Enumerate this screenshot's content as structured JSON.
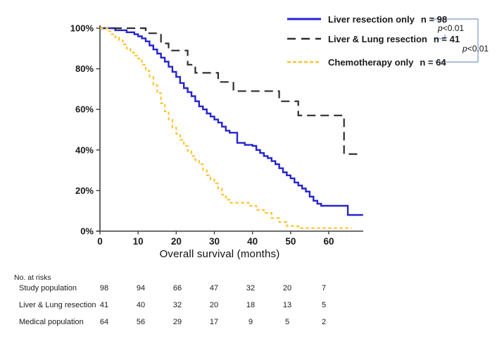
{
  "chart_data": {
    "type": "line",
    "variant": "kaplan_meier_step",
    "title": "",
    "xlabel": "Overall survival (months)",
    "ylabel": "",
    "x_range": [
      0,
      69
    ],
    "y_range": [
      0,
      100
    ],
    "x_tick_values": [
      0,
      10,
      20,
      30,
      40,
      50,
      60
    ],
    "x_tick_labels": [
      "0",
      "10",
      "20",
      "30",
      "40",
      "50",
      "60"
    ],
    "y_tick_values": [
      100,
      80,
      60,
      40,
      20,
      0
    ],
    "y_tick_labels": [
      "100%",
      "80%",
      "60%",
      "40%",
      "20%",
      "0%"
    ],
    "grid": false,
    "legend_position": "top-right",
    "axis_color": "#3f3f3f",
    "series": [
      {
        "name": "Liver resection only",
        "n": 98,
        "color": "#2424cf",
        "line_style": "solid",
        "points": [
          [
            0,
            100
          ],
          [
            4,
            99
          ],
          [
            7,
            98
          ],
          [
            9,
            97
          ],
          [
            10,
            96
          ],
          [
            11,
            95
          ],
          [
            12,
            93.5
          ],
          [
            13,
            91.5
          ],
          [
            14,
            89.5
          ],
          [
            15,
            87.5
          ],
          [
            16,
            85.5
          ],
          [
            17,
            83.5
          ],
          [
            18,
            81
          ],
          [
            19,
            78.5
          ],
          [
            20,
            76
          ],
          [
            21,
            73
          ],
          [
            22,
            70.5
          ],
          [
            23,
            68.5
          ],
          [
            24,
            66.5
          ],
          [
            25,
            64
          ],
          [
            26,
            61.5
          ],
          [
            27,
            60
          ],
          [
            28,
            58
          ],
          [
            29,
            56.5
          ],
          [
            30,
            55
          ],
          [
            31,
            53.5
          ],
          [
            32,
            51.5
          ],
          [
            33,
            49.5
          ],
          [
            34,
            48.5
          ],
          [
            36,
            43.5
          ],
          [
            38,
            42.5
          ],
          [
            40,
            42
          ],
          [
            41,
            40
          ],
          [
            42,
            38.5
          ],
          [
            43,
            37
          ],
          [
            44,
            36
          ],
          [
            45,
            34.5
          ],
          [
            46,
            33
          ],
          [
            47,
            31
          ],
          [
            48,
            29
          ],
          [
            49,
            27.5
          ],
          [
            50,
            26
          ],
          [
            51,
            24
          ],
          [
            52,
            22.5
          ],
          [
            53,
            21
          ],
          [
            54,
            19.5
          ],
          [
            55,
            17
          ],
          [
            56,
            15
          ],
          [
            57,
            13.5
          ],
          [
            58,
            12.5
          ],
          [
            65,
            8
          ],
          [
            69,
            8
          ]
        ]
      },
      {
        "name": "Liver & Lung resection",
        "n": 41,
        "color": "#2d2d2d",
        "line_style": "long-dash",
        "points": [
          [
            0,
            100
          ],
          [
            12,
            97.5
          ],
          [
            16,
            92.5
          ],
          [
            18,
            89
          ],
          [
            23,
            82
          ],
          [
            25,
            78
          ],
          [
            31,
            73.5
          ],
          [
            35,
            69
          ],
          [
            47,
            64
          ],
          [
            52,
            57
          ],
          [
            64,
            38
          ],
          [
            68,
            38
          ]
        ]
      },
      {
        "name": "Chemotherapy only",
        "n": 64,
        "color": "#fcc428",
        "line_style": "short-dash",
        "points": [
          [
            0,
            100
          ],
          [
            2,
            98.5
          ],
          [
            3,
            97
          ],
          [
            4,
            95.5
          ],
          [
            5,
            94
          ],
          [
            6,
            92
          ],
          [
            7,
            90
          ],
          [
            8,
            88
          ],
          [
            9,
            86.5
          ],
          [
            10,
            85
          ],
          [
            11,
            82
          ],
          [
            12,
            79
          ],
          [
            13,
            76
          ],
          [
            14,
            72
          ],
          [
            15,
            68
          ],
          [
            16,
            63
          ],
          [
            17,
            59
          ],
          [
            18,
            55
          ],
          [
            19,
            51
          ],
          [
            20,
            48
          ],
          [
            21,
            45
          ],
          [
            22,
            42
          ],
          [
            23,
            39.5
          ],
          [
            24,
            37
          ],
          [
            25,
            35
          ],
          [
            26,
            33
          ],
          [
            27,
            30
          ],
          [
            28,
            27.5
          ],
          [
            29,
            25.5
          ],
          [
            30,
            23.5
          ],
          [
            31,
            21
          ],
          [
            32,
            18
          ],
          [
            33,
            15.5
          ],
          [
            34,
            14
          ],
          [
            39,
            12.5
          ],
          [
            41,
            10.5
          ],
          [
            43,
            9
          ],
          [
            45,
            6.5
          ],
          [
            47,
            4.5
          ],
          [
            49,
            2.5
          ],
          [
            52,
            1.5
          ],
          [
            66,
            1.5
          ]
        ]
      }
    ]
  },
  "legend": {
    "items": [
      {
        "label": "Liver resection only",
        "n_label": "n = 98"
      },
      {
        "label": "Liver & Lung resection",
        "n_label": "n = 41"
      },
      {
        "label": "Chemotherapy only",
        "n_label": "n = 64"
      }
    ]
  },
  "stats": {
    "bracket_color": "#8fa8d0",
    "comparisons": [
      {
        "text_italic": "p",
        "text_value": "<0.01"
      },
      {
        "text_italic": "p",
        "text_value": "<0.01"
      }
    ]
  },
  "risk_table": {
    "title": "No. at risks",
    "time_points": [
      0,
      10,
      20,
      30,
      40,
      50,
      60
    ],
    "rows": [
      {
        "label": "Study population",
        "values": [
          "98",
          "94",
          "66",
          "47",
          "32",
          "20",
          "7"
        ]
      },
      {
        "label": "Liver & Lung resection",
        "values": [
          "41",
          "40",
          "32",
          "20",
          "18",
          "13",
          "5"
        ]
      },
      {
        "label": "Medical population",
        "values": [
          "64",
          "56",
          "29",
          "17",
          "9",
          "5",
          "2"
        ]
      }
    ]
  }
}
